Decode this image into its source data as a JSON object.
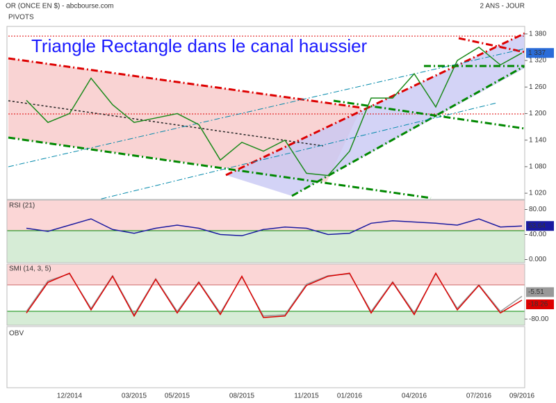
{
  "header": "OR (ONCE EN $) - abcbourse.com",
  "period": "2 ANS - JOUR",
  "indicator": "PIVOTS",
  "chart_data": [
    {
      "type": "line",
      "title": "Triangle Rectangle  dans le canal haussier",
      "color": "#1a8a1a",
      "categories": [
        null,
        null,
        "12/2014",
        null,
        null,
        "03/2015",
        null,
        "05/2015",
        null,
        null,
        "08/2015",
        null,
        null,
        "11/2015",
        null,
        "01/2016",
        null,
        null,
        "04/2016",
        null,
        null,
        "07/2016",
        null,
        "09/2016"
      ],
      "values": [
        1230,
        1180,
        1200,
        1280,
        1220,
        1180,
        1190,
        1200,
        1175,
        1095,
        1135,
        1115,
        1140,
        1065,
        1060,
        1115,
        1235,
        1235,
        1290,
        1215,
        1320,
        1350,
        1310,
        1337
      ],
      "value_labels": [
        null,
        null,
        null,
        null,
        null,
        null,
        null,
        null,
        null,
        null,
        null,
        null,
        null,
        null,
        null,
        null,
        null,
        null,
        null,
        null,
        null,
        null,
        null,
        "1 337"
      ],
      "ylim": [
        1006,
        1397
      ],
      "yticks": [
        {
          "value": 1020,
          "label": "1 020"
        },
        {
          "value": 1080,
          "label": "1 080"
        },
        {
          "value": 1140,
          "label": "1 140"
        },
        {
          "value": 1200,
          "label": "1 200"
        },
        {
          "value": 1260,
          "label": "1 260"
        },
        {
          "value": 1320,
          "label": "1 320"
        },
        {
          "value": 1380,
          "label": "1 380"
        }
      ]
    },
    {
      "type": "line",
      "title": "RSI (21)",
      "color": "#1a1aa0",
      "values": [
        50,
        45,
        55,
        65,
        48,
        42,
        50,
        55,
        50,
        40,
        38,
        48,
        52,
        50,
        40,
        42,
        58,
        62,
        60,
        58,
        55,
        65,
        52,
        53.64
      ],
      "ylim": [
        -5,
        95
      ],
      "yticks": [
        {
          "value": 0,
          "label": "0.000"
        },
        {
          "value": 40,
          "label": "40.00"
        },
        {
          "value": 80,
          "label": "80.00"
        }
      ]
    },
    {
      "type": "line",
      "title": "SMI (14, 3, 5)",
      "series": [
        {
          "color": "#999999",
          "values": [
            -55,
            45,
            68,
            -45,
            62,
            -65,
            52,
            -55,
            42,
            -60,
            58,
            -70,
            -66,
            34,
            62,
            68,
            -55,
            42,
            -60,
            68,
            -45,
            32,
            -55,
            -5.51
          ]
        },
        {
          "color": "#dd0000",
          "values": [
            -60,
            40,
            70,
            -50,
            60,
            -70,
            50,
            -60,
            40,
            -65,
            60,
            -75,
            -70,
            30,
            60,
            70,
            -60,
            40,
            -65,
            70,
            -50,
            30,
            -60,
            -18.26
          ]
        }
      ],
      "ylim": [
        -100,
        100
      ],
      "yticks": [
        {
          "value": -80,
          "label": "-80.00"
        }
      ]
    },
    {
      "type": "empty",
      "title": "OBV"
    }
  ]
}
